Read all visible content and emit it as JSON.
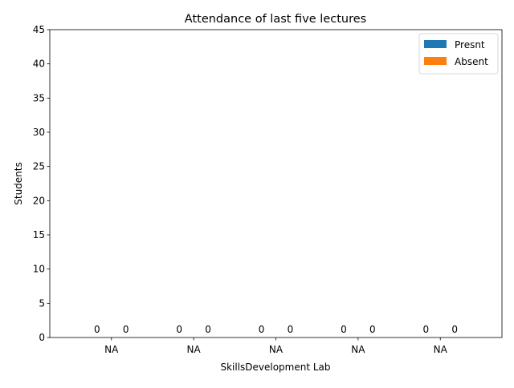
{
  "chart_data": {
    "type": "bar",
    "title": "Attendance of last five lectures",
    "xlabel": "SkillsDevelopment Lab",
    "ylabel": "Students",
    "categories": [
      "NA",
      "NA",
      "NA",
      "NA",
      "NA"
    ],
    "series": [
      {
        "name": "Presnt",
        "values": [
          0,
          0,
          0,
          0,
          0
        ],
        "color": "#1f77b4"
      },
      {
        "name": "Absent",
        "values": [
          0,
          0,
          0,
          0,
          0
        ],
        "color": "#ff7f0e"
      }
    ],
    "ylim": [
      0,
      45
    ],
    "yticks": [
      0,
      5,
      10,
      15,
      20,
      25,
      30,
      35,
      40,
      45
    ],
    "grid": false,
    "legend_position": "top-right",
    "data_labels": true
  }
}
